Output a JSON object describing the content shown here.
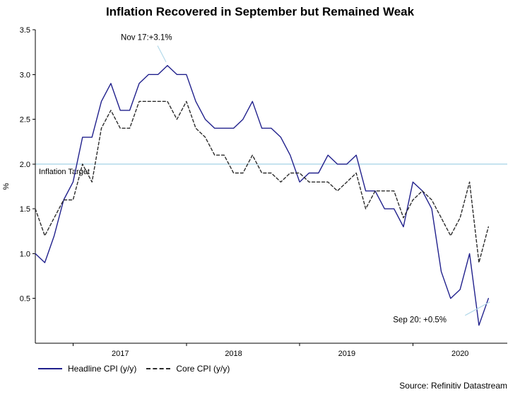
{
  "title": "Inflation Recovered in September but Remained Weak",
  "source": "Source: Refinitiv Datastream",
  "legend": {
    "items": [
      {
        "label": "Headline CPI (y/y)"
      },
      {
        "label": "Core CPI (y/y)"
      }
    ]
  },
  "chart_data": {
    "type": "line",
    "title": "Inflation Recovered in September but Remained Weak",
    "xlabel": "",
    "ylabel": "%",
    "ylim": [
      0,
      3.5
    ],
    "y_ticks": [
      0.5,
      1.0,
      1.5,
      2.0,
      2.5,
      3.0,
      3.5
    ],
    "grid": false,
    "legend_position": "bottom-left",
    "x": [
      "2016-09",
      "2016-10",
      "2016-11",
      "2016-12",
      "2017-01",
      "2017-02",
      "2017-03",
      "2017-04",
      "2017-05",
      "2017-06",
      "2017-07",
      "2017-08",
      "2017-09",
      "2017-10",
      "2017-11",
      "2017-12",
      "2018-01",
      "2018-02",
      "2018-03",
      "2018-04",
      "2018-05",
      "2018-06",
      "2018-07",
      "2018-08",
      "2018-09",
      "2018-10",
      "2018-11",
      "2018-12",
      "2019-01",
      "2019-02",
      "2019-03",
      "2019-04",
      "2019-05",
      "2019-06",
      "2019-07",
      "2019-08",
      "2019-09",
      "2019-10",
      "2019-11",
      "2019-12",
      "2020-01",
      "2020-02",
      "2020-03",
      "2020-04",
      "2020-05",
      "2020-06",
      "2020-07",
      "2020-08",
      "2020-09"
    ],
    "series": [
      {
        "name": "Headline CPI (y/y)",
        "color": "#20208c",
        "style": "solid",
        "values": [
          1.0,
          0.9,
          1.2,
          1.6,
          1.8,
          2.3,
          2.3,
          2.7,
          2.9,
          2.6,
          2.6,
          2.9,
          3.0,
          3.0,
          3.1,
          3.0,
          3.0,
          2.7,
          2.5,
          2.4,
          2.4,
          2.4,
          2.5,
          2.7,
          2.4,
          2.4,
          2.3,
          2.1,
          1.8,
          1.9,
          1.9,
          2.1,
          2.0,
          2.0,
          2.1,
          1.7,
          1.7,
          1.5,
          1.5,
          1.3,
          1.8,
          1.7,
          1.5,
          0.8,
          0.5,
          0.6,
          1.0,
          0.2,
          0.5
        ]
      },
      {
        "name": "Core CPI (y/y)",
        "color": "#2b2b2b",
        "style": "dashed",
        "values": [
          1.5,
          1.2,
          1.4,
          1.6,
          1.6,
          2.0,
          1.8,
          2.4,
          2.6,
          2.4,
          2.4,
          2.7,
          2.7,
          2.7,
          2.7,
          2.5,
          2.7,
          2.4,
          2.3,
          2.1,
          2.1,
          1.9,
          1.9,
          2.1,
          1.9,
          1.9,
          1.8,
          1.9,
          1.9,
          1.8,
          1.8,
          1.8,
          1.7,
          1.8,
          1.9,
          1.5,
          1.7,
          1.7,
          1.7,
          1.4,
          1.6,
          1.7,
          1.6,
          1.4,
          1.2,
          1.4,
          1.8,
          0.9,
          1.3
        ]
      }
    ],
    "year_labels": [
      {
        "label": "2017",
        "month_index": 9
      },
      {
        "label": "2018",
        "month_index": 21
      },
      {
        "label": "2019",
        "month_index": 33
      },
      {
        "label": "2020",
        "month_index": 45
      }
    ],
    "year_tick_indices": [
      4,
      16,
      28,
      40
    ],
    "target_line": {
      "value": 2.0,
      "label": "Inflation Target",
      "color": "#b3d9ea"
    },
    "annotations": [
      {
        "text": "Nov 17:+3.1%",
        "point_index": 14,
        "value": 3.1,
        "text_dx": -66,
        "text_dy": -36,
        "leader": [
          -14,
          -28,
          -2,
          -5
        ]
      },
      {
        "text": "Sep 20: +0.5%",
        "point_index": 48,
        "value": 0.5,
        "text_dx": -135,
        "text_dy": 34,
        "leader": [
          -33,
          24,
          2,
          5
        ]
      }
    ]
  }
}
